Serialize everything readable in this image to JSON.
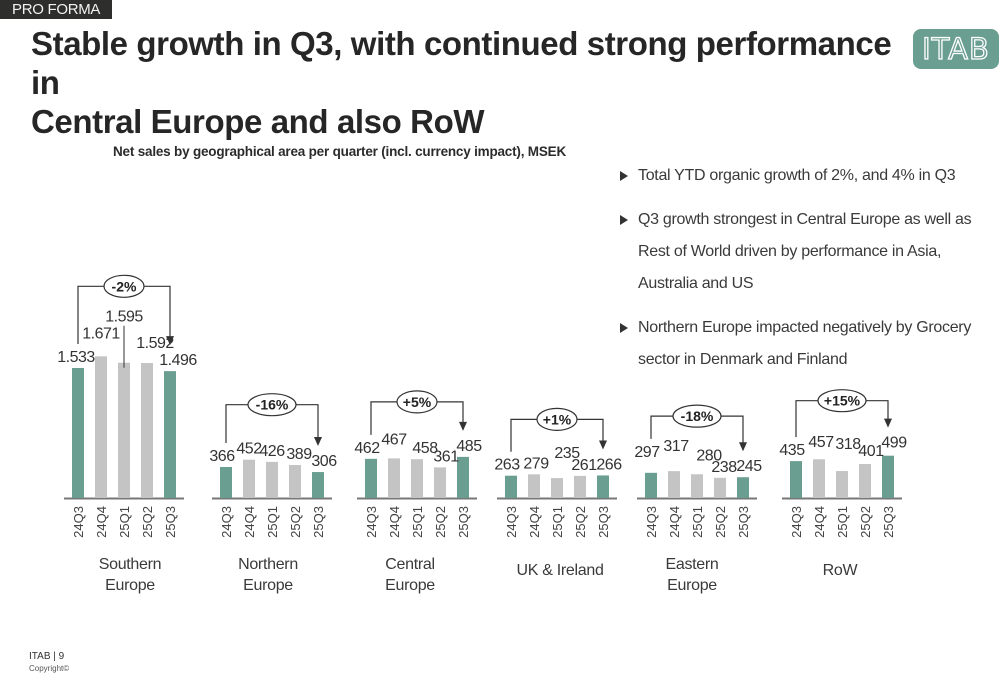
{
  "header": {
    "badge": "PRO FORMA",
    "title_line1": "Stable growth in Q3, with continued strong performance in",
    "title_line2": "Central Europe and also RoW",
    "logo_text": "ITAB"
  },
  "bullets": [
    "Total YTD organic growth of 2%, and 4% in Q3",
    "Q3 growth strongest in Central Europe as well as Rest of World driven by performance in Asia, Australia and US",
    "Northern Europe impacted negatively by Grocery sector in Denmark and Finland"
  ],
  "footer": {
    "page": "ITAB | 9",
    "copyright": "Copyright©"
  },
  "colors": {
    "highlight": "#6a9e90",
    "neutral": "#c4c4c4",
    "axis": "#777777",
    "text": "#333333"
  },
  "chart_data": {
    "type": "bar",
    "title": "Net sales by geographical area per quarter (incl. currency impact), MSEK",
    "xlabel": "",
    "ylabel": "",
    "categories": [
      "24Q3",
      "24Q4",
      "25Q1",
      "25Q2",
      "25Q3"
    ],
    "highlighted_categories": [
      "24Q3",
      "25Q3"
    ],
    "grid": false,
    "legend": "none",
    "groups": [
      {
        "name": "Southern\nEurope",
        "values": [
          1533,
          1671,
          1595,
          1592,
          1496
        ],
        "labels": [
          "1.533",
          "1.671",
          "1.595",
          "1.592",
          "1.496"
        ],
        "change": "-2%"
      },
      {
        "name": "Northern\nEurope",
        "values": [
          366,
          452,
          426,
          389,
          306
        ],
        "labels": [
          "366",
          "452",
          "426",
          "389",
          "306"
        ],
        "change": "-16%"
      },
      {
        "name": "Central\nEurope",
        "values": [
          462,
          467,
          458,
          361,
          485
        ],
        "labels": [
          "462",
          "467",
          "458",
          "361",
          "485"
        ],
        "change": "+5%"
      },
      {
        "name": "UK & Ireland",
        "values": [
          263,
          279,
          235,
          261,
          266
        ],
        "labels": [
          "263",
          "279",
          "235",
          "261",
          "266"
        ],
        "change": "+1%"
      },
      {
        "name": "Eastern\nEurope",
        "values": [
          297,
          317,
          280,
          238,
          245
        ],
        "labels": [
          "297",
          "317",
          "280",
          "238",
          "245"
        ],
        "change": "-18%"
      },
      {
        "name": "RoW",
        "values": [
          435,
          457,
          318,
          401,
          499
        ],
        "labels": [
          "435",
          "457",
          "318",
          "401",
          "499"
        ],
        "change": "+15%"
      }
    ]
  }
}
